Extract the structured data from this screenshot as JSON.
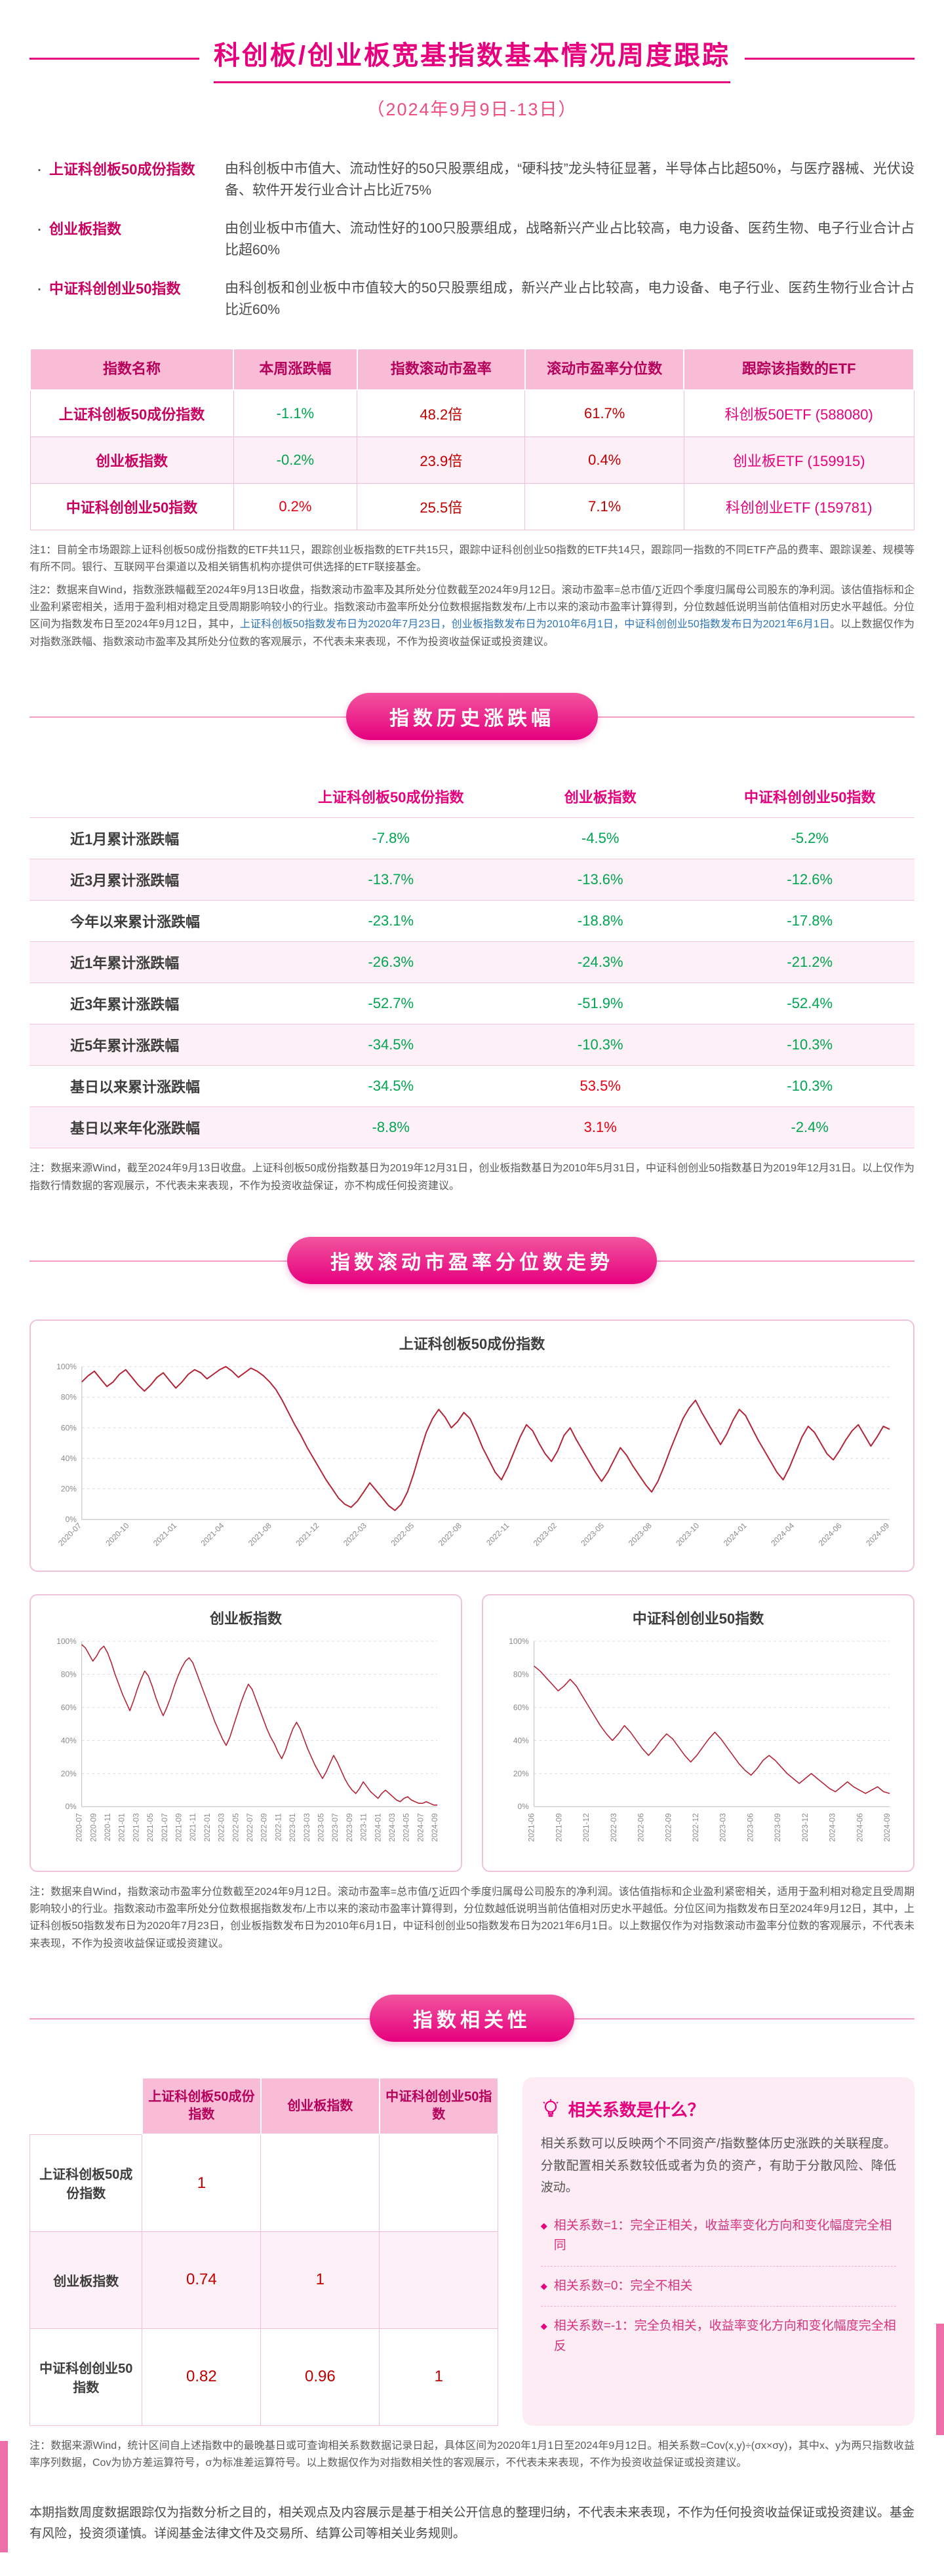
{
  "theme": {
    "accent": "#e6007e",
    "header_row_pink": "#f8bcd7",
    "row_stripe_pink": "#fdeff6",
    "positive_red": "#e60012",
    "negative_green": "#00a551",
    "value_dark_red": "#c00000",
    "note_blue": "#2e75b6",
    "chart_line_red": "#b22335"
  },
  "header": {
    "title": "科创板/创业板宽基指数基本情况周度跟踪",
    "subtitle": "（2024年9月9日-13日）"
  },
  "intro": {
    "items": [
      {
        "name": "上证科创板50成份指数",
        "desc": "由科创板中市值大、流动性好的50只股票组成，“硬科技”龙头特征显著，半导体占比超50%，与医疗器械、光伏设备、软件开发行业合计占比近75%"
      },
      {
        "name": "创业板指数",
        "desc": "由创业板中市值大、流动性好的100只股票组成，战略新兴产业占比较高，电力设备、医药生物、电子行业合计占比超60%"
      },
      {
        "name": "中证科创创业50指数",
        "desc": "由科创板和创业板中市值较大的50只股票组成，新兴产业占比较高，电力设备、电子行业、医药生物行业合计占比近60%"
      }
    ]
  },
  "table1": {
    "headers": [
      "指数名称",
      "本周涨跌幅",
      "指数滚动市盈率",
      "滚动市盈率分位数",
      "跟踪该指数的ETF"
    ],
    "rows": [
      {
        "name": "上证科创板50成份指数",
        "chg": "-1.1%",
        "pe": "48.2倍",
        "pct": "61.7%",
        "etf": "科创板50ETF (588080)"
      },
      {
        "name": "创业板指数",
        "chg": "-0.2%",
        "pe": "23.9倍",
        "pct": "0.4%",
        "etf": "创业板ETF (159915)"
      },
      {
        "name": "中证科创创业50指数",
        "chg": "0.2%",
        "pe": "25.5倍",
        "pct": "7.1%",
        "etf": "科创创业ETF (159781)"
      }
    ]
  },
  "notes1": {
    "n1": "注1：目前全市场跟踪上证科创板50成份指数的ETF共11只，跟踪创业板指数的ETF共15只，跟踪中证科创创业50指数的ETF共14只，跟踪同一指数的不同ETF产品的费率、跟踪误差、规模等有所不同。银行、互联网平台渠道以及相关销售机构亦提供可供选择的ETF联接基金。",
    "n2": [
      {
        "t": "注2：数据来自Wind，指数涨跌幅截至2024年9月13日收盘，指数滚动市盈率及其所处分位数截至2024年9月12日。滚动市盈率=总市值/∑近四个季度归属母公司股东的净利润。该估值指标和企业盈利紧密相关，适用于盈利相对稳定且受周期影响较小的行业。指数滚动市盈率所处分位数根据指数发布/上市以来的滚动市盈率计算得到，分位数越低说明当前估值相对历史水平越低。分位区间为指数发布日至2024年9月12日，其中，",
        "c": ""
      },
      {
        "t": "上证科创板50指数发布日为2020年7月23日，创业板指数发布日为2010年6月1日，中证科创创业50指数发布日为2021年6月1日",
        "c": "blue"
      },
      {
        "t": "。以上数据仅作为对指数涨跌幅、指数滚动市盈率及其所处分位数的客观展示，不代表未来表现，不作为投资收益保证或投资建议。",
        "c": ""
      }
    ]
  },
  "history": {
    "pill": "指数历史涨跌幅",
    "columns": [
      "上证科创板50成份指数",
      "创业板指数",
      "中证科创创业50指数"
    ],
    "rows": [
      {
        "label": "近1月累计涨跌幅",
        "v": [
          "-7.8%",
          "-4.5%",
          "-5.2%"
        ]
      },
      {
        "label": "近3月累计涨跌幅",
        "v": [
          "-13.7%",
          "-13.6%",
          "-12.6%"
        ]
      },
      {
        "label": "今年以来累计涨跌幅",
        "v": [
          "-23.1%",
          "-18.8%",
          "-17.8%"
        ]
      },
      {
        "label": "近1年累计涨跌幅",
        "v": [
          "-26.3%",
          "-24.3%",
          "-21.2%"
        ]
      },
      {
        "label": "近3年累计涨跌幅",
        "v": [
          "-52.7%",
          "-51.9%",
          "-52.4%"
        ]
      },
      {
        "label": "近5年累计涨跌幅",
        "v": [
          "-34.5%",
          "-10.3%",
          "-10.3%"
        ]
      },
      {
        "label": "基日以来累计涨跌幅",
        "v": [
          "-34.5%",
          "53.5%",
          "-10.3%"
        ]
      },
      {
        "label": "基日以来年化涨跌幅",
        "v": [
          "-8.8%",
          "3.1%",
          "-2.4%"
        ]
      }
    ],
    "note": "注：数据来源Wind，截至2024年9月13日收盘。上证科创板50成份指数基日为2019年12月31日，创业板指数基日为2010年5月31日，中证科创创业50指数基日为2019年12月31日。以上仅作为指数行情数据的客观展示，不代表未来表现，不作为投资收益保证，亦不构成任何投资建议。"
  },
  "pe": {
    "pill": "指数滚动市盈率分位数走势",
    "note": "注：数据来自Wind，指数滚动市盈率分位数截至2024年9月12日。滚动市盈率=总市值/∑近四个季度归属母公司股东的净利润。该估值指标和企业盈利紧密相关，适用于盈利相对稳定且受周期影响较小的行业。指数滚动市盈率所处分位数根据指数发布/上市以来的滚动市盈率计算得到，分位数越低说明当前估值相对历史水平越低。分位区间为指数发布日至2024年9月12日，其中，上证科创板50指数发布日为2020年7月23日，创业板指数发布日为2010年6月1日，中证科创创业50指数发布日为2021年6月1日。以上数据仅作为对指数滚动市盈率分位数的客观展示，不代表未来表现，不作为投资收益保证或投资建议。"
  },
  "chart_data": [
    {
      "type": "line",
      "title": "上证科创板50成份指数",
      "xlabel": "",
      "ylabel": "滚动市盈率分位数",
      "ylim": [
        0,
        100
      ],
      "grid": true,
      "legend_position": "none",
      "line_color": "#b22335",
      "yticks": [
        "0%",
        "20%",
        "40%",
        "60%",
        "80%",
        "100%"
      ],
      "xlabels": [
        "2020-07",
        "2020-10",
        "2021-01",
        "2021-04",
        "2021-08",
        "2021-12",
        "2022-03",
        "2022-05",
        "2022-08",
        "2022-11",
        "2023-02",
        "2023-05",
        "2023-08",
        "2023-10",
        "2024-01",
        "2024-04",
        "2024-06",
        "2024-09"
      ],
      "values": [
        90,
        94,
        97,
        92,
        87,
        90,
        95,
        98,
        93,
        88,
        84,
        88,
        93,
        96,
        91,
        86,
        90,
        95,
        98,
        96,
        92,
        95,
        98,
        100,
        97,
        93,
        96,
        99,
        97,
        94,
        90,
        85,
        78,
        70,
        62,
        55,
        47,
        40,
        33,
        26,
        20,
        14,
        10,
        8,
        12,
        18,
        24,
        19,
        14,
        9,
        6,
        10,
        18,
        30,
        44,
        57,
        66,
        72,
        67,
        60,
        64,
        70,
        66,
        57,
        47,
        39,
        31,
        26,
        34,
        44,
        54,
        62,
        58,
        50,
        43,
        38,
        45,
        55,
        60,
        52,
        45,
        38,
        31,
        25,
        31,
        39,
        47,
        42,
        35,
        29,
        23,
        18,
        25,
        35,
        46,
        56,
        66,
        73,
        78,
        70,
        63,
        56,
        49,
        56,
        65,
        72,
        68,
        60,
        52,
        45,
        38,
        31,
        26,
        34,
        44,
        54,
        61,
        57,
        50,
        43,
        39,
        45,
        52,
        58,
        62,
        55,
        48,
        54,
        61,
        59
      ]
    },
    {
      "type": "line",
      "title": "创业板指数",
      "xlabel": "",
      "ylabel": "滚动市盈率分位数",
      "ylim": [
        0,
        100
      ],
      "grid": true,
      "legend_position": "none",
      "line_color": "#b22335",
      "yticks": [
        "0%",
        "20%",
        "40%",
        "60%",
        "80%",
        "100%"
      ],
      "xlabels": [
        "2020-07",
        "2020-09",
        "2020-11",
        "2021-01",
        "2021-03",
        "2021-05",
        "2021-07",
        "2021-09",
        "2021-11",
        "2022-01",
        "2022-03",
        "2022-05",
        "2022-07",
        "2022-09",
        "2022-11",
        "2023-01",
        "2023-03",
        "2023-05",
        "2023-07",
        "2023-09",
        "2023-11",
        "2024-01",
        "2024-03",
        "2024-05",
        "2024-07",
        "2024-09"
      ],
      "values": [
        98,
        96,
        92,
        88,
        91,
        95,
        97,
        93,
        87,
        80,
        74,
        68,
        63,
        58,
        64,
        71,
        77,
        82,
        79,
        73,
        66,
        60,
        55,
        60,
        66,
        73,
        79,
        84,
        88,
        90,
        87,
        81,
        75,
        69,
        63,
        57,
        51,
        46,
        41,
        37,
        42,
        49,
        56,
        63,
        69,
        74,
        71,
        65,
        59,
        53,
        47,
        42,
        38,
        33,
        29,
        34,
        41,
        47,
        51,
        47,
        41,
        35,
        30,
        25,
        21,
        17,
        21,
        26,
        31,
        27,
        22,
        17,
        13,
        10,
        8,
        11,
        15,
        12,
        9,
        7,
        5,
        8,
        10,
        8,
        6,
        4,
        3,
        5,
        6,
        4,
        3,
        2,
        2,
        3,
        2,
        1,
        1
      ]
    },
    {
      "type": "line",
      "title": "中证科创创业50指数",
      "xlabel": "",
      "ylabel": "滚动市盈率分位数",
      "ylim": [
        0,
        100
      ],
      "grid": true,
      "legend_position": "none",
      "line_color": "#b22335",
      "yticks": [
        "0%",
        "20%",
        "40%",
        "60%",
        "80%",
        "100%"
      ],
      "xlabels": [
        "2021-06",
        "2021-09",
        "2021-12",
        "2022-03",
        "2022-06",
        "2022-09",
        "2022-12",
        "2023-03",
        "2023-06",
        "2023-09",
        "2023-12",
        "2024-03",
        "2024-06",
        "2024-09"
      ],
      "values": [
        85,
        82,
        78,
        74,
        70,
        73,
        77,
        73,
        67,
        61,
        55,
        49,
        44,
        40,
        44,
        49,
        45,
        40,
        35,
        31,
        35,
        40,
        44,
        41,
        36,
        31,
        27,
        31,
        36,
        41,
        45,
        41,
        36,
        31,
        26,
        22,
        19,
        23,
        28,
        31,
        28,
        24,
        20,
        17,
        14,
        17,
        20,
        17,
        14,
        11,
        9,
        12,
        15,
        12,
        10,
        8,
        10,
        12,
        9,
        8
      ]
    }
  ],
  "correlation": {
    "pill": "指数相关性",
    "columns": [
      "上证科创板50成份指数",
      "创业板指数",
      "中证科创创业50指数"
    ],
    "rows": [
      {
        "label": "上证科创板50成份指数",
        "v": [
          "1",
          "",
          ""
        ]
      },
      {
        "label": "创业板指数",
        "v": [
          "0.74",
          "1",
          ""
        ]
      },
      {
        "label": "中证科创创业50指数",
        "v": [
          "0.82",
          "0.96",
          "1"
        ]
      }
    ],
    "sidebar": {
      "title": "相关系数是什么？",
      "body": "相关系数可以反映两个不同资产/指数整体历史涨跌的关联程度。分散配置相关系数较低或者为负的资产，有助于分散风险、降低波动。",
      "bullets": [
        "相关系数=1：完全正相关，收益率变化方向和变化幅度完全相同",
        "相关系数=0：完全不相关",
        "相关系数=-1：完全负相关，收益率变化方向和变化幅度完全相反"
      ]
    },
    "note": "注：数据来源Wind，统计区间自上述指数中的最晚基日或可查询相关系数数据记录日起，具体区间为2020年1月1日至2024年9月12日。相关系数=Cov(x,y)÷(σx×σy)，其中x、y为两只指数收益率序列数据，Cov为协方差运算符号，σ为标准差运算符号。以上数据仅作为对指数相关性的客观展示，不代表未来表现，不作为投资收益保证或投资建议。"
  },
  "footer": {
    "text": "本期指数周度数据跟踪仅为指数分析之目的，相关观点及内容展示是基于相关公开信息的整理归纳，不代表未来表现，不作为任何投资收益保证或投资建议。基金有风险，投资须谨慎。详阅基金法律文件及交易所、结算公司等相关业务规则。"
  }
}
